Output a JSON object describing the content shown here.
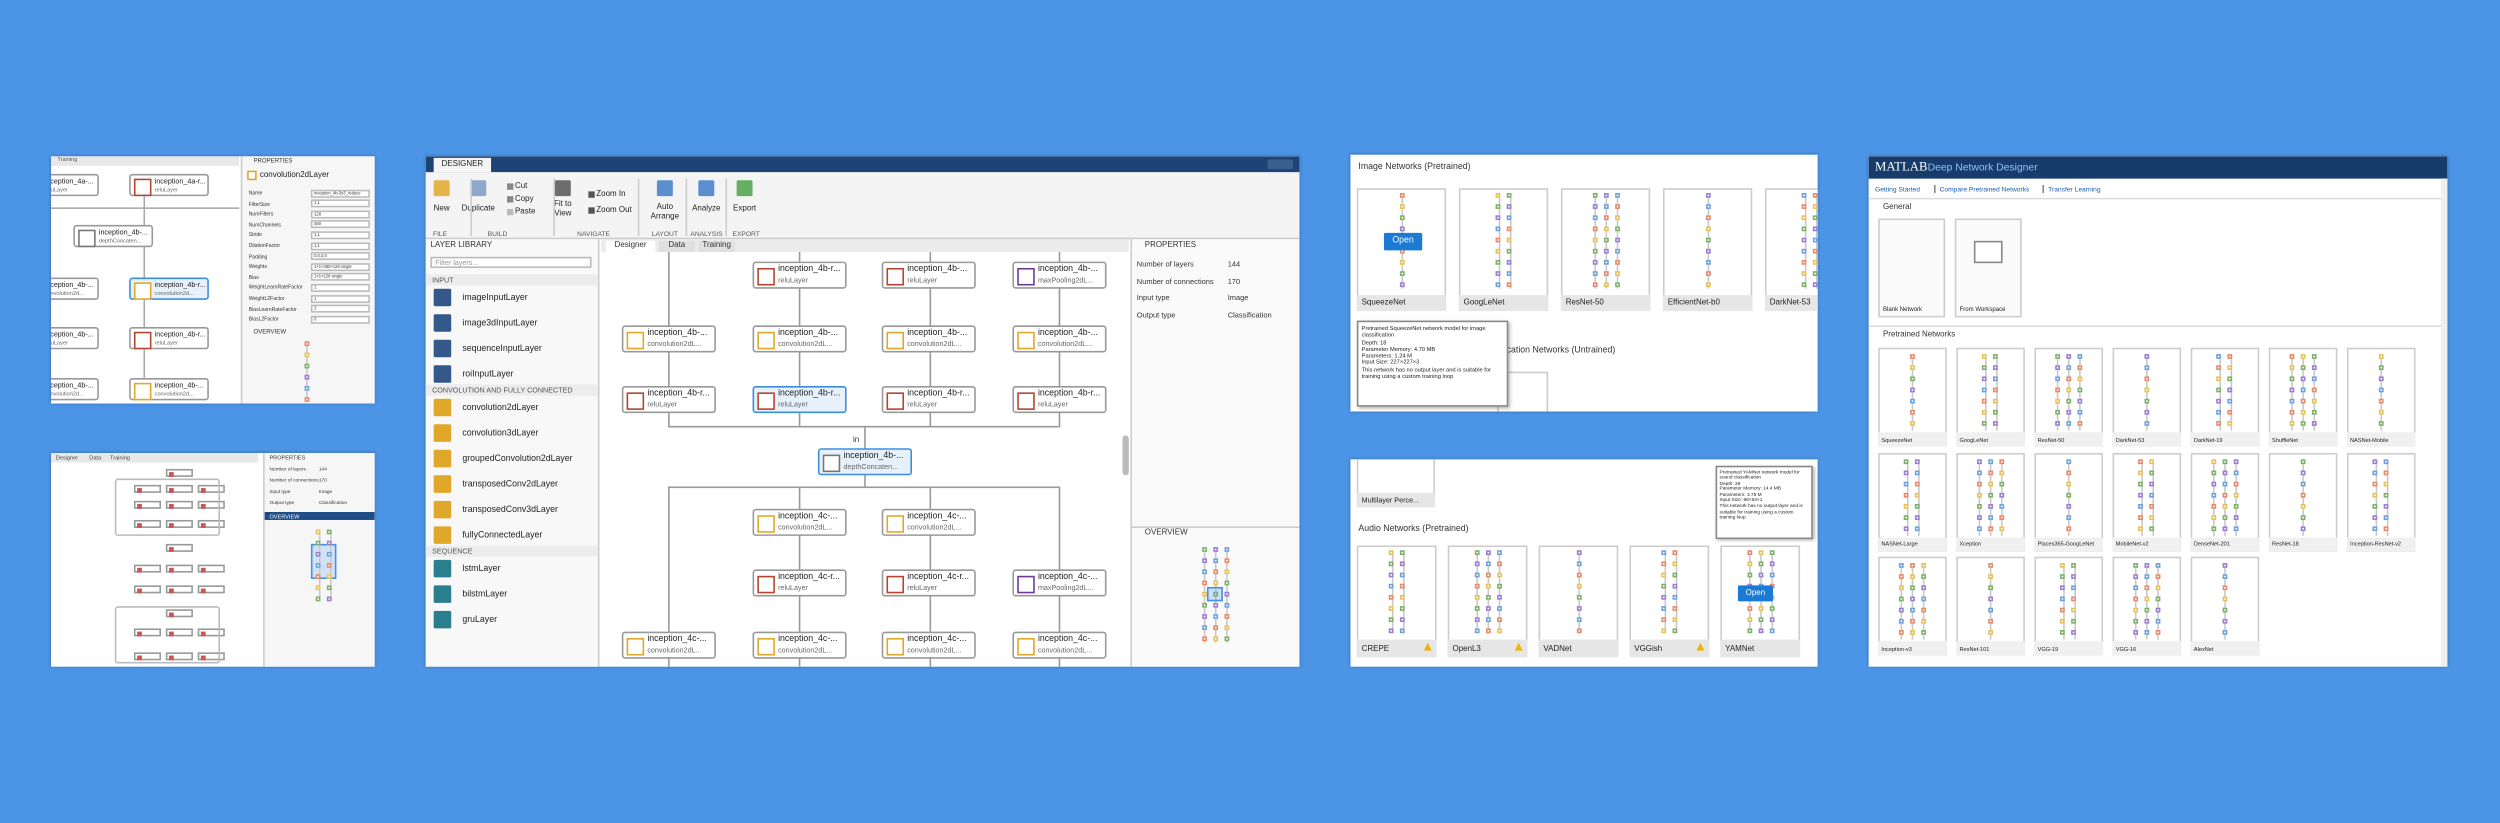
{
  "small_top": {
    "tab": "Training",
    "properties": "PROPERTIES",
    "layer": "convolution2dLayer",
    "overview": "OVERVIEW",
    "fields": [
      [
        "Name",
        "inception_4b-3x3_reduce"
      ],
      [
        "FilterSize",
        "1,1"
      ],
      [
        "NumFilters",
        "128"
      ],
      [
        "NumChannels",
        "480"
      ],
      [
        "Stride",
        "1,1"
      ],
      [
        "DilationFactor",
        "1,1"
      ],
      [
        "Padding",
        "0,0,0,0"
      ],
      [
        "Weights",
        "1×1×480×128 single"
      ],
      [
        "Bias",
        "1×1×128 single"
      ],
      [
        "WeightLearnRateFactor",
        "1"
      ],
      [
        "WeightL2Factor",
        "1"
      ],
      [
        "BiasLearnRateFactor",
        "2"
      ],
      [
        "BiasL2Factor",
        "0"
      ]
    ],
    "nodes": [
      {
        "name": "inception_4a-...",
        "type": "reluLayer"
      },
      {
        "name": "inception_4a-r...",
        "type": "reluLayer"
      },
      {
        "name": "inception_4b-...",
        "type": "depthConcaten..."
      },
      {
        "name": "inception_4b-...",
        "type": "convolution2d..."
      },
      {
        "name": "inception_4b-r...",
        "type": "convolution2d..."
      },
      {
        "name": "inception_4b-...",
        "type": "reluLayer"
      },
      {
        "name": "inception_4b-r...",
        "type": "reluLayer"
      },
      {
        "name": "inception_4b-...",
        "type": "convolution2d..."
      },
      {
        "name": "inception_4b-...",
        "type": "convolution2d..."
      }
    ]
  },
  "small_bottom": {
    "tabs": [
      "Designer",
      "Data",
      "Training"
    ],
    "properties": "PROPERTIES",
    "overview": "OVERVIEW",
    "rows": [
      [
        "Number of layers",
        "144"
      ],
      [
        "Number of connections",
        "170"
      ],
      [
        "Input type",
        "Image"
      ],
      [
        "Output type",
        "Classification"
      ]
    ]
  },
  "designer": {
    "tab": "DESIGNER",
    "toolbar": [
      "New",
      "Duplicate",
      "Cut",
      "Copy",
      "Paste",
      "Fit to View",
      "Zoom In",
      "Zoom Out",
      "Auto Arrange",
      "Analyze",
      "Export"
    ],
    "sections": [
      "FILE",
      "BUILD",
      "NAVIGATE",
      "LAYOUT",
      "ANALYSIS",
      "EXPORT"
    ],
    "library_title": "LAYER LIBRARY",
    "filter": "Filter layers...",
    "library": [
      {
        "group": "INPUT",
        "items": [
          "imageInputLayer",
          "image3dInputLayer",
          "sequenceInputLayer",
          "roiInputLayer"
        ]
      },
      {
        "group": "CONVOLUTION AND FULLY CONNECTED",
        "items": [
          "convolution2dLayer",
          "convolution3dLayer",
          "groupedConvolution2dLayer",
          "transposedConv2dLayer",
          "transposedConv3dLayer",
          "fullyConnectedLayer"
        ]
      },
      {
        "group": "SEQUENCE",
        "items": [
          "lstmLayer",
          "bilstmLayer",
          "gruLayer"
        ]
      }
    ],
    "tabs": [
      "Designer",
      "Data",
      "Training"
    ],
    "edge_label": "in",
    "nodes": [
      {
        "name": "inception_4b-r...",
        "type": "reluLayer"
      },
      {
        "name": "inception_4b-...",
        "type": "reluLayer"
      },
      {
        "name": "inception_4b-...",
        "type": "maxPooling2dL..."
      },
      {
        "name": "inception_4b-...",
        "type": "convolution2dL..."
      },
      {
        "name": "inception_4b-...",
        "type": "convolution2dL..."
      },
      {
        "name": "inception_4b-...",
        "type": "convolution2dL..."
      },
      {
        "name": "inception_4b-...",
        "type": "convolution2dL..."
      },
      {
        "name": "inception_4b-r...",
        "type": "reluLayer"
      },
      {
        "name": "inception_4b-r...",
        "type": "reluLayer"
      },
      {
        "name": "inception_4b-r...",
        "type": "reluLayer"
      },
      {
        "name": "inception_4b-r...",
        "type": "reluLayer"
      },
      {
        "name": "inception_4b-...",
        "type": "depthConcaten..."
      },
      {
        "name": "inception_4c-...",
        "type": "convolution2dL..."
      },
      {
        "name": "inception_4c-...",
        "type": "convolution2dL..."
      },
      {
        "name": "inception_4c-r...",
        "type": "reluLayer"
      },
      {
        "name": "inception_4c-r...",
        "type": "reluLayer"
      },
      {
        "name": "inception_4c-...",
        "type": "maxPooling2dL..."
      },
      {
        "name": "inception_4c-...",
        "type": "convolution2dL..."
      },
      {
        "name": "inception_4c-...",
        "type": "convolution2dL..."
      },
      {
        "name": "inception_4c-...",
        "type": "convolution2dL..."
      },
      {
        "name": "inception_4c-...",
        "type": "convolution2dL..."
      }
    ],
    "properties": "PROPERTIES",
    "prop_rows": [
      [
        "Number of layers",
        "144"
      ],
      [
        "Number of connections",
        "170"
      ],
      [
        "Input type",
        "Image"
      ],
      [
        "Output type",
        "Classification"
      ]
    ],
    "overview": "OVERVIEW"
  },
  "image_networks": {
    "header": "Image Networks (Pretrained)",
    "cards": [
      "SqueezeNet",
      "GoogLeNet",
      "ResNet-50",
      "EfficientNet-b0",
      "DarkNet-53"
    ],
    "open": "Open",
    "tooltip": [
      "Pretrained SqueezeNet network model for image classification",
      "Depth: 18",
      "Parameter Memory: 4.70 MB",
      "Parameters: 1.24 M",
      "Input Size: 227×227×3",
      "This network has no output layer and is suitable for training using a custom training loop"
    ],
    "untrained_header": "ification Networks (Untrained)"
  },
  "audio_networks": {
    "top_card": "Multilayer Perce...",
    "header": "Audio Networks (Pretrained)",
    "cards": [
      "CREPE",
      "OpenL3",
      "VADNet",
      "VGGish",
      "YAMNet"
    ],
    "open": "Open",
    "tooltip": [
      "Pretrained YAMNet network model for sound classification",
      "Depth: 28",
      "Parameter Memory: 14.4 MB",
      "Parameters: 3.75 M",
      "Input Size: 96×64×1",
      "This network has no output layer and is suitable for training using a custom training loop"
    ]
  },
  "start_page": {
    "brand": "MATLAB",
    "title": "Deep Network Designer",
    "links": [
      "Getting Started",
      "Compare Pretrained Networks",
      "Transfer Learning"
    ],
    "general": "General",
    "general_cards": [
      "Blank Network",
      "From Workspace"
    ],
    "pretrained": "Pretrained Networks",
    "networks": [
      "SqueezeNet",
      "GoogLeNet",
      "ResNet-50",
      "DarkNet-53",
      "DarkNet-19",
      "ShuffleNet",
      "NASNet-Mobile",
      "NASNet-Large",
      "Xception",
      "Places365-GoogLeNet",
      "MobileNet-v2",
      "DenseNet-201",
      "ResNet-18",
      "Inception-ResNet-v2",
      "Inception-v3",
      "ResNet-101",
      "VGG-19",
      "VGG-16",
      "AlexNet"
    ]
  }
}
